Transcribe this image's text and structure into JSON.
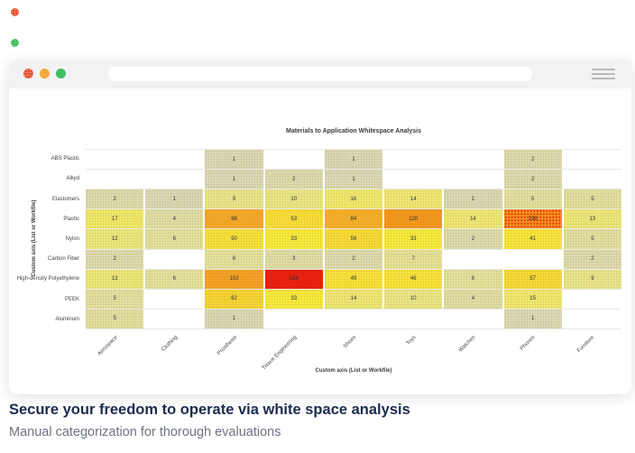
{
  "browser": {
    "url_value": "",
    "traffic_lights": {
      "close": "#e4512e",
      "minimize": "#f2a93b",
      "maximize": "#3fbf5f"
    }
  },
  "chart_data": {
    "type": "heatmap",
    "title": "Materials to Application Whitespace Analysis",
    "xlabel": "Custom axis (List or Workfile)",
    "ylabel": "Custom axis (List or Workfile)",
    "columns": [
      "Aerospace",
      "Clothing",
      "Prosthesis",
      "Tissue Engineering",
      "Shoes",
      "Toys",
      "Watches",
      "Phones",
      "Furniture"
    ],
    "rows": [
      "ABS Plastic",
      "Alkyd",
      "Elastomers",
      "Plastic",
      "Nylon",
      "Carbon Fiber",
      "High-density Polyethylene",
      "PEEK",
      "Aluminum"
    ],
    "values": [
      [
        null,
        null,
        1,
        null,
        1,
        null,
        null,
        2,
        null
      ],
      [
        null,
        null,
        1,
        2,
        1,
        null,
        null,
        2,
        null
      ],
      [
        2,
        1,
        9,
        10,
        16,
        14,
        1,
        5,
        5
      ],
      [
        17,
        4,
        88,
        53,
        84,
        120,
        14,
        138,
        13
      ],
      [
        12,
        6,
        50,
        33,
        56,
        33,
        2,
        41,
        5
      ],
      [
        2,
        null,
        6,
        3,
        2,
        7,
        null,
        null,
        2
      ],
      [
        13,
        6,
        102,
        234,
        49,
        46,
        6,
        57,
        9
      ],
      [
        5,
        null,
        62,
        33,
        14,
        10,
        4,
        15,
        null
      ],
      [
        5,
        null,
        1,
        null,
        null,
        null,
        null,
        1,
        null
      ]
    ],
    "empty_color": "#ffffff",
    "colormap": {
      "anchors": [
        [
          1,
          "#d9d8b6"
        ],
        [
          3,
          "#dedca8"
        ],
        [
          6,
          "#e2e09e"
        ],
        [
          10,
          "#eae586"
        ],
        [
          17,
          "#efe96a"
        ],
        [
          33,
          "#f7e93e"
        ],
        [
          50,
          "#f7e03a"
        ],
        [
          62,
          "#f6d434"
        ],
        [
          88,
          "#f5a82b"
        ],
        [
          120,
          "#f3971d"
        ],
        [
          138,
          "#f28e1b"
        ],
        [
          234,
          "#eb1d10"
        ]
      ]
    },
    "legend": "none",
    "grid": "row lines"
  },
  "caption": {
    "heading": "Secure your freedom to operate via white space analysis",
    "subheading": "Manual categorization for thorough evaluations",
    "heading_color": "#1d2b4f",
    "subheading_color": "#6e7480"
  }
}
